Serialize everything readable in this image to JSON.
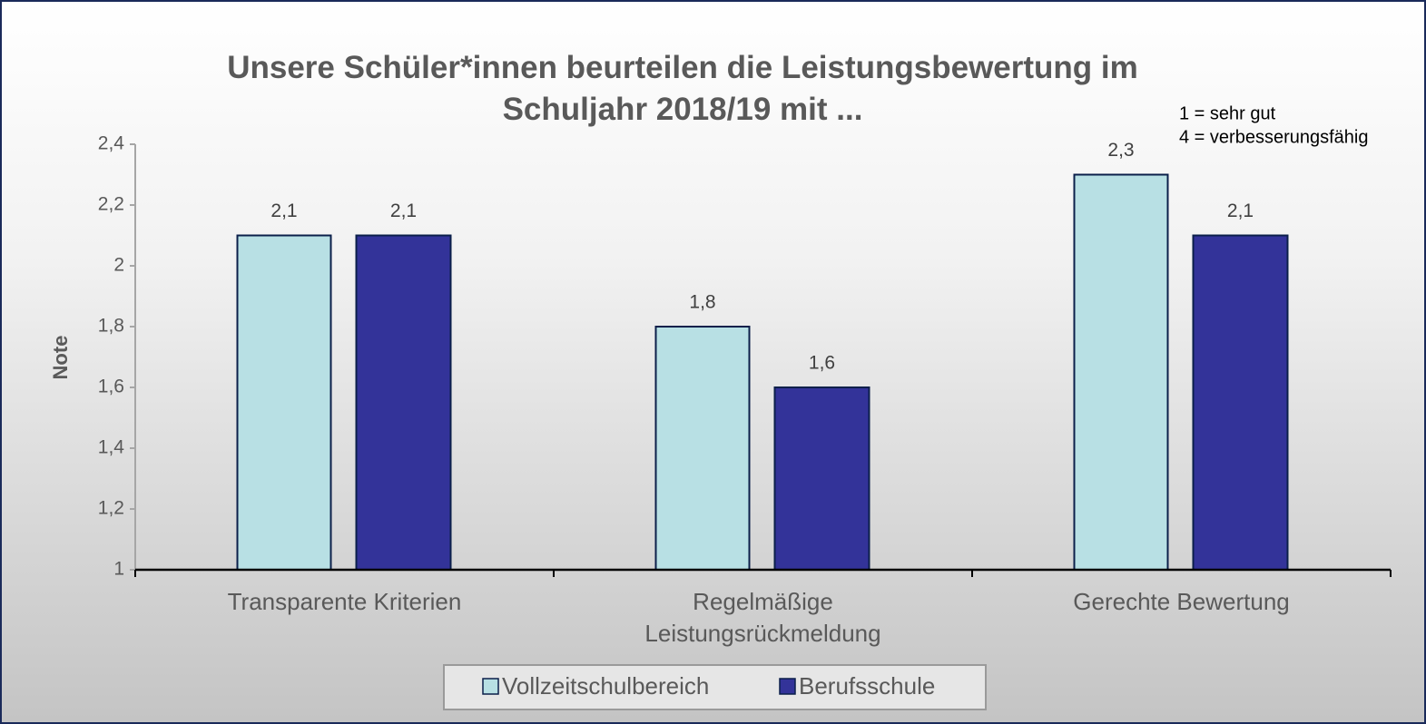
{
  "chart_data": {
    "type": "bar",
    "title": "Unsere Schüler*innen beurteilen die Leistungsbewertung im Schuljahr 2018/19 mit ...",
    "annotations": [
      "1 = sehr gut",
      "4 = verbesserungsfähig"
    ],
    "y_label": "Note",
    "categories": [
      "Transparente Kriterien",
      "Regelmäßige Leistungsrückmeldung",
      "Gerechte Bewertung"
    ],
    "series": [
      {
        "name": "Vollzeitschulbereich",
        "color": "#b8e0e4",
        "values": [
          2.1,
          1.8,
          2.3
        ],
        "value_labels": [
          "2,1",
          "1,8",
          "2,3"
        ]
      },
      {
        "name": "Berufsschule",
        "color": "#333399",
        "values": [
          2.1,
          1.6,
          2.1
        ],
        "value_labels": [
          "2,1",
          "1,6",
          "2,1"
        ]
      }
    ],
    "ylim": [
      1,
      2.4
    ],
    "yticks": [
      1,
      {
        "value": 1.2,
        "label": "1,2"
      },
      {
        "value": 1.4,
        "label": "1,4"
      },
      {
        "value": 1.6,
        "label": "1,6"
      },
      {
        "value": 1.8,
        "label": "1,8"
      },
      2,
      {
        "value": 2.2,
        "label": "2,2"
      },
      {
        "value": 2.4,
        "label": "2,4"
      }
    ],
    "grid": false,
    "legend": "bottom"
  }
}
